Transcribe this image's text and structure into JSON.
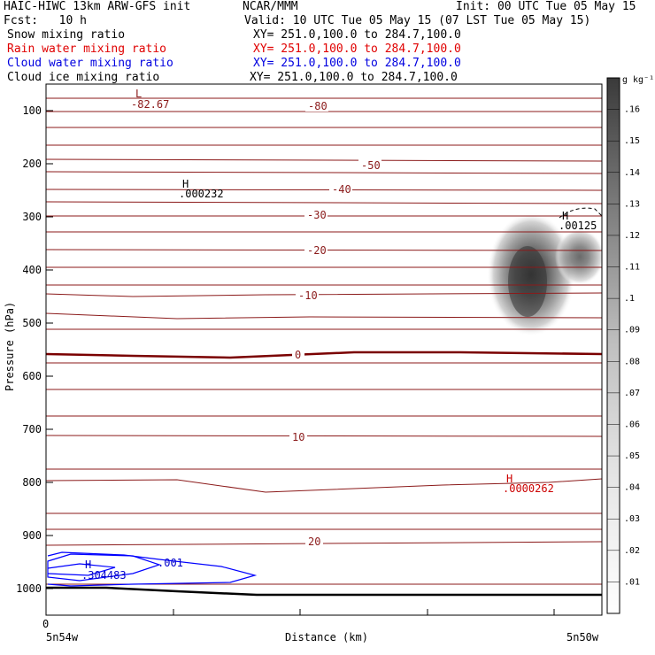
{
  "header": {
    "line1_left": "HAIC-HIWC 13km ARW-GFS init",
    "line1_mid": "NCAR/MMM",
    "line1_right": "Init: 00 UTC Tue 05 May 15",
    "fcst": "Fcst:   10 h",
    "valid": "Valid: 10 UTC Tue 05 May 15 (07 LST Tue 05 May 15)"
  },
  "fields": [
    {
      "name": "Snow mixing ratio",
      "xy": "XY= 251.0,100.0 to 284.7,100.0",
      "color": "#000000"
    },
    {
      "name": "Rain water mixing ratio",
      "xy": "XY= 251.0,100.0 to 284.7,100.0",
      "color": "#e00000"
    },
    {
      "name": "Cloud water mixing ratio",
      "xy": "XY= 251.0,100.0 to 284.7,100.0",
      "color": "#0000e0"
    },
    {
      "name": "Cloud ice mixing ratio",
      "xy": "XY= 251.0,100.0 to 284.7,100.0",
      "color": "#000000"
    }
  ],
  "chart_data": {
    "type": "contour",
    "ylabel": "Pressure (hPa)",
    "xlabel": "Distance (km)",
    "x_tick_labels": [
      "0"
    ],
    "x_end_labels": [
      "5n54w",
      "5n50w"
    ],
    "yticks": [
      100,
      200,
      300,
      400,
      500,
      600,
      700,
      800,
      900,
      1000
    ],
    "yrange": [
      50,
      1050
    ],
    "colorbar": {
      "unit": "g kg⁻¹",
      "labels": [
        ".01",
        ".02",
        ".03",
        ".04",
        ".05",
        ".06",
        ".07",
        ".08",
        ".09",
        ".1",
        ".11",
        ".12",
        ".13",
        ".14",
        ".15",
        ".16"
      ],
      "range": [
        0,
        0.17
      ]
    },
    "temperature_labels": [
      "-80",
      "-50",
      "-40",
      "-30",
      "-20",
      "-10",
      "0",
      "10",
      "20"
    ],
    "annotations": [
      {
        "marker": "L",
        "value": "-82.67",
        "color": "#8b1a1a"
      },
      {
        "marker": "H",
        "value": ".000232",
        "color": "#000000"
      },
      {
        "marker": "H",
        "value": ".00125",
        "color": "#000000"
      },
      {
        "marker": "H",
        "value": ".0000262",
        "color": "#cc0000"
      },
      {
        "marker": "H",
        "value": ".304483",
        "color": "#0000cc"
      },
      {
        "marker": "",
        "value": ".001",
        "color": "#0000cc"
      }
    ],
    "colors": {
      "temperature": "#8b1a1a",
      "zero_isotherm": "#7a0000",
      "ground": "#000000",
      "cloud_water": "#0000ff"
    }
  }
}
